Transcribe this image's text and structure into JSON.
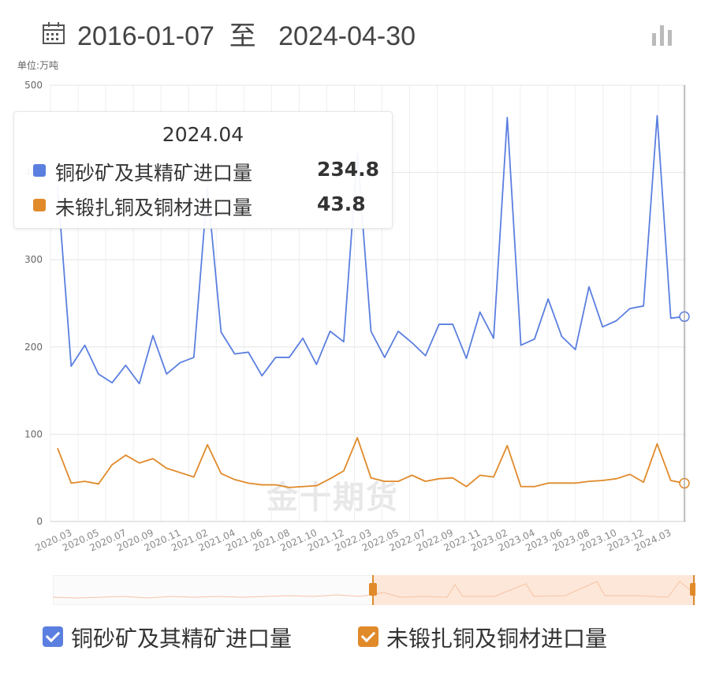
{
  "header": {
    "date_range": "2016-01-07  至   2024-04-30",
    "icons": [
      "calendar-icon",
      "bar-chart-icon"
    ]
  },
  "unit_label": "单位:万吨",
  "watermark": "金十期货",
  "tooltip": {
    "title": "2024.04",
    "rows": [
      {
        "name": "铜砂矿及其精矿进口量",
        "value": "234.8",
        "color": "#5b7fe0"
      },
      {
        "name": "未锻扎铜及铜材进口量",
        "value": "43.8",
        "color": "#e08a2a"
      }
    ]
  },
  "legend": [
    {
      "label": "铜砂矿及其精矿进口量",
      "color": "#5b7fe0"
    },
    {
      "label": "未锻扎铜及铜材进口量",
      "color": "#e08a2a"
    }
  ],
  "chart_data": {
    "type": "line",
    "ylim": [
      0,
      500
    ],
    "y_ticks": [
      "0",
      "100",
      "200",
      "300",
      "400",
      "500"
    ],
    "x_tick_labels": [
      "2020.03",
      "2020.05",
      "2020.07",
      "2020.09",
      "2020.11",
      "2021.02",
      "2021.04",
      "2021.06",
      "2021.08",
      "2021.10",
      "2021.12",
      "2022.03",
      "2022.05",
      "2022.07",
      "2022.09",
      "2022.11",
      "2023.02",
      "2023.04",
      "2023.06",
      "2023.08",
      "2023.10",
      "2023.12",
      "2024.03"
    ],
    "grid": true,
    "legend_position": "bottom",
    "series": [
      {
        "name": "铜砂矿及其精矿进口量",
        "color": "#5b7fe0",
        "values": [
          385,
          178,
          202,
          169,
          159,
          179,
          158,
          213,
          169,
          182,
          188,
          383,
          217,
          192,
          194,
          167,
          188,
          188,
          210,
          180,
          218,
          206,
          422,
          218,
          188,
          218,
          205,
          190,
          226,
          226,
          187,
          240,
          210,
          463,
          202,
          209,
          255,
          212,
          197,
          269,
          223,
          230,
          244,
          247,
          465,
          233,
          234.8
        ]
      },
      {
        "name": "未锻扎铜及铜材进口量",
        "color": "#e08a2a",
        "values": [
          84,
          44,
          46,
          43,
          65,
          76,
          67,
          72,
          61,
          56,
          51,
          88,
          55,
          48,
          44,
          42,
          42,
          39,
          40,
          41,
          49,
          58,
          96,
          50,
          46,
          46,
          53,
          46,
          49,
          50,
          40,
          53,
          51,
          87,
          40,
          40,
          44,
          44,
          44,
          46,
          47,
          49,
          54,
          45,
          89,
          47,
          43.8
        ]
      }
    ]
  }
}
